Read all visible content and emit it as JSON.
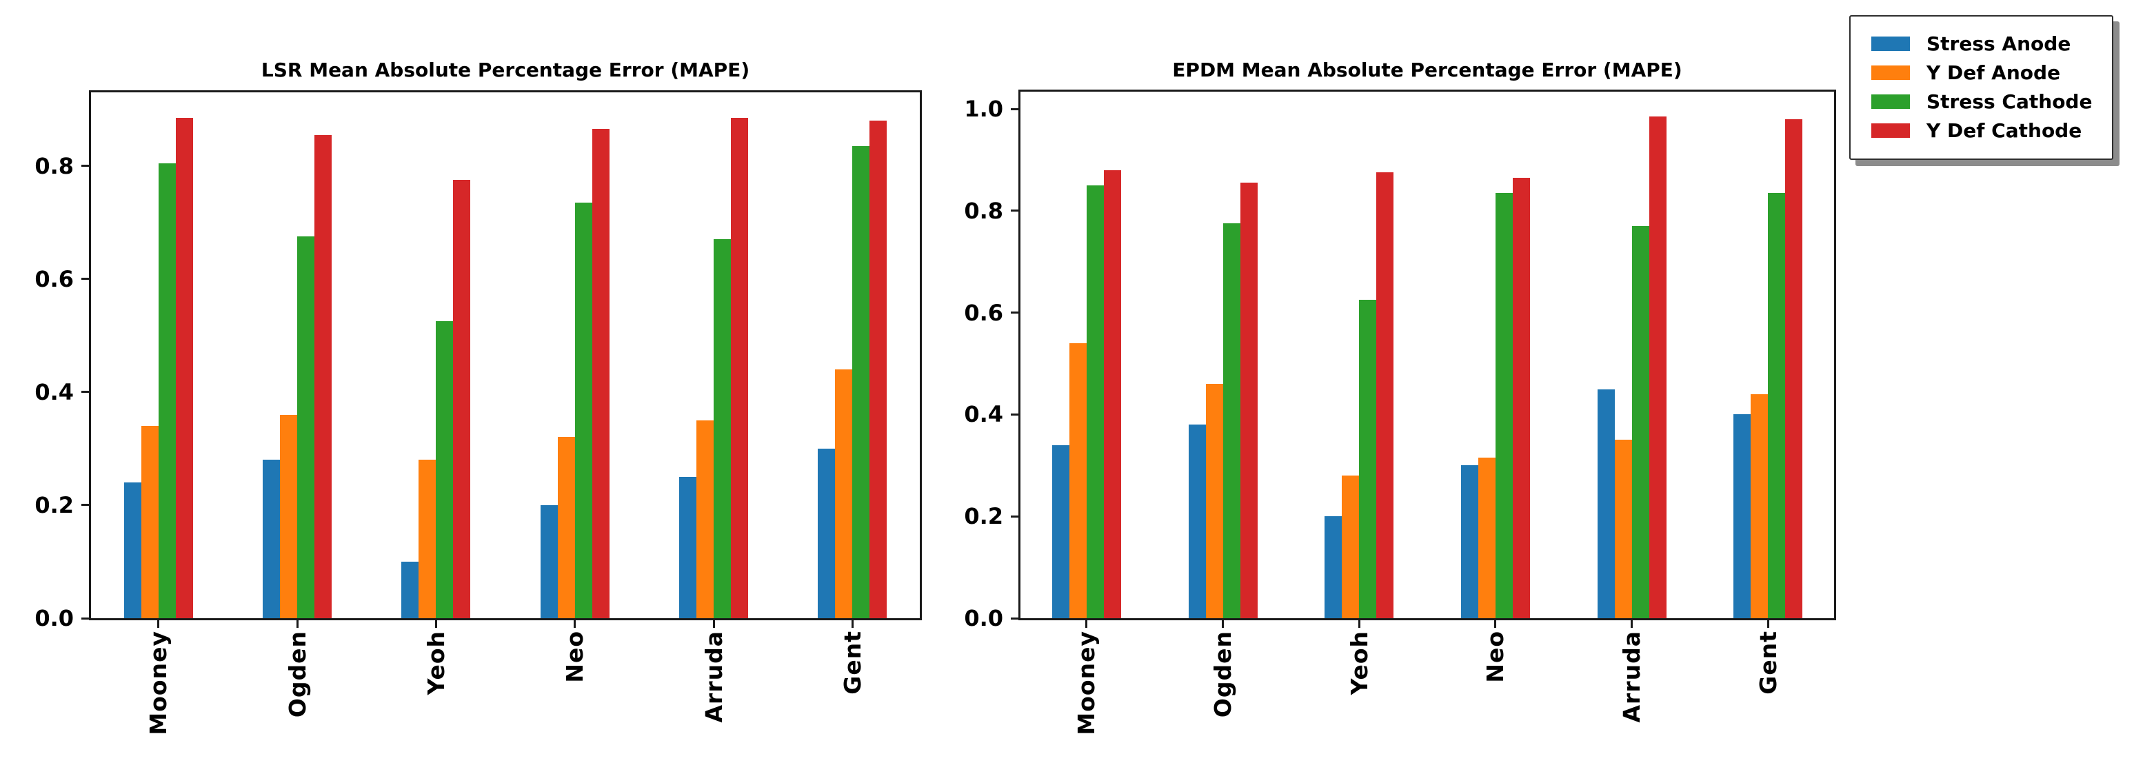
{
  "figure": {
    "background_color": "#ffffff",
    "axis_color": "#1a1a1a"
  },
  "legend": {
    "position": "upper-right-outside",
    "items": [
      {
        "label": "Stress Anode",
        "color": "#1f77b4"
      },
      {
        "label": "Y Def Anode",
        "color": "#ff7f0e"
      },
      {
        "label": "Stress Cathode",
        "color": "#2ca02c"
      },
      {
        "label": "Y Def Cathode",
        "color": "#d62728"
      }
    ]
  },
  "chart_data": [
    {
      "type": "bar",
      "title": "LSR Mean Absolute Percentage Error (MAPE)",
      "categories": [
        "Mooney",
        "Ogden",
        "Yeoh",
        "Neo",
        "Arruda",
        "Gent"
      ],
      "series": [
        {
          "name": "Stress Anode",
          "color": "#1f77b4",
          "values": [
            0.24,
            0.28,
            0.1,
            0.2,
            0.25,
            0.3
          ]
        },
        {
          "name": "Y Def Anode",
          "color": "#ff7f0e",
          "values": [
            0.34,
            0.36,
            0.28,
            0.32,
            0.35,
            0.44
          ]
        },
        {
          "name": "Stress Cathode",
          "color": "#2ca02c",
          "values": [
            0.805,
            0.675,
            0.525,
            0.735,
            0.67,
            0.835
          ]
        },
        {
          "name": "Y Def Cathode",
          "color": "#d62728",
          "values": [
            0.885,
            0.855,
            0.775,
            0.865,
            0.885,
            0.88
          ]
        }
      ],
      "xlabel": "",
      "ylabel": "",
      "ylim": [
        0,
        0.93
      ],
      "yticks": [
        0.0,
        0.2,
        0.4,
        0.6,
        0.8
      ],
      "grid": false,
      "xtick_rotation": 90
    },
    {
      "type": "bar",
      "title": "EPDM Mean Absolute Percentage Error (MAPE)",
      "categories": [
        "Mooney",
        "Ogden",
        "Yeoh",
        "Neo",
        "Arruda",
        "Gent"
      ],
      "series": [
        {
          "name": "Stress Anode",
          "color": "#1f77b4",
          "values": [
            0.34,
            0.38,
            0.2,
            0.3,
            0.45,
            0.4
          ]
        },
        {
          "name": "Y Def Anode",
          "color": "#ff7f0e",
          "values": [
            0.54,
            0.46,
            0.28,
            0.315,
            0.35,
            0.44
          ]
        },
        {
          "name": "Stress Cathode",
          "color": "#2ca02c",
          "values": [
            0.85,
            0.775,
            0.625,
            0.835,
            0.77,
            0.835
          ]
        },
        {
          "name": "Y Def Cathode",
          "color": "#d62728",
          "values": [
            0.88,
            0.855,
            0.875,
            0.865,
            0.985,
            0.98
          ]
        }
      ],
      "xlabel": "",
      "ylabel": "",
      "ylim": [
        0,
        1.034
      ],
      "yticks": [
        0.0,
        0.2,
        0.4,
        0.6,
        0.8,
        1.0
      ],
      "grid": false,
      "xtick_rotation": 90
    }
  ]
}
